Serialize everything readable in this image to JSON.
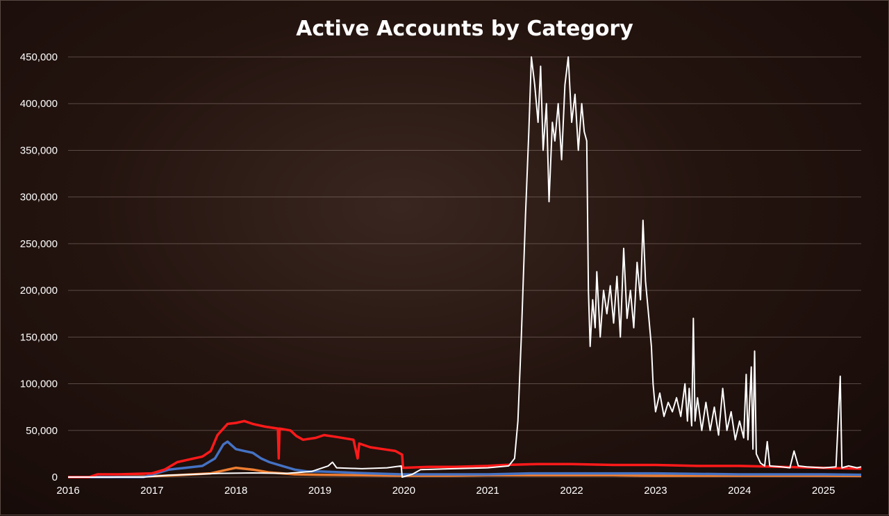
{
  "chart_data": {
    "type": "line",
    "title": "Active Accounts by Category",
    "xlabel": "",
    "ylabel": "",
    "xlim": [
      2016.0,
      2025.45
    ],
    "ylim": [
      0,
      450000
    ],
    "grid": true,
    "legend": "none",
    "x_ticks": [
      "2016",
      "2017",
      "2018",
      "2019",
      "2020",
      "2021",
      "2022",
      "2023",
      "2024",
      "2025"
    ],
    "y_ticks": [
      "0",
      "50,000",
      "100,000",
      "150,000",
      "200,000",
      "250,000",
      "300,000",
      "350,000",
      "400,000",
      "450,000"
    ],
    "colors": {
      "white": "#ffffff",
      "red": "#ff1a1a",
      "blue": "#4472c4",
      "orange": "#ed7d31"
    },
    "series": [
      {
        "color": "#ffffff",
        "points": [
          [
            2016.0,
            0
          ],
          [
            2016.9,
            0
          ],
          [
            2017.2,
            2000
          ],
          [
            2017.5,
            3000
          ],
          [
            2017.8,
            4000
          ],
          [
            2018.2,
            4500
          ],
          [
            2018.6,
            4000
          ],
          [
            2018.9,
            6000
          ],
          [
            2019.0,
            9000
          ],
          [
            2019.1,
            12000
          ],
          [
            2019.15,
            16000
          ],
          [
            2019.2,
            10000
          ],
          [
            2019.5,
            9000
          ],
          [
            2019.8,
            10000
          ],
          [
            2019.97,
            12000
          ],
          [
            2019.98,
            0
          ],
          [
            2020.1,
            3000
          ],
          [
            2020.2,
            8000
          ],
          [
            2020.6,
            9000
          ],
          [
            2021.0,
            10000
          ],
          [
            2021.25,
            12000
          ],
          [
            2021.32,
            20000
          ],
          [
            2021.36,
            60000
          ],
          [
            2021.4,
            150000
          ],
          [
            2021.45,
            280000
          ],
          [
            2021.49,
            370000
          ],
          [
            2021.52,
            450000
          ],
          [
            2021.56,
            420000
          ],
          [
            2021.6,
            380000
          ],
          [
            2021.63,
            440000
          ],
          [
            2021.66,
            350000
          ],
          [
            2021.7,
            400000
          ],
          [
            2021.73,
            295000
          ],
          [
            2021.77,
            380000
          ],
          [
            2021.8,
            360000
          ],
          [
            2021.84,
            400000
          ],
          [
            2021.88,
            340000
          ],
          [
            2021.92,
            420000
          ],
          [
            2021.96,
            450000
          ],
          [
            2022.0,
            380000
          ],
          [
            2022.04,
            410000
          ],
          [
            2022.08,
            350000
          ],
          [
            2022.12,
            400000
          ],
          [
            2022.15,
            370000
          ],
          [
            2022.18,
            360000
          ],
          [
            2022.2,
            200000
          ],
          [
            2022.22,
            140000
          ],
          [
            2022.25,
            190000
          ],
          [
            2022.28,
            160000
          ],
          [
            2022.3,
            220000
          ],
          [
            2022.34,
            150000
          ],
          [
            2022.38,
            200000
          ],
          [
            2022.42,
            175000
          ],
          [
            2022.46,
            205000
          ],
          [
            2022.5,
            165000
          ],
          [
            2022.54,
            215000
          ],
          [
            2022.58,
            150000
          ],
          [
            2022.62,
            245000
          ],
          [
            2022.66,
            170000
          ],
          [
            2022.7,
            200000
          ],
          [
            2022.74,
            160000
          ],
          [
            2022.78,
            230000
          ],
          [
            2022.82,
            190000
          ],
          [
            2022.85,
            275000
          ],
          [
            2022.88,
            210000
          ],
          [
            2022.92,
            170000
          ],
          [
            2022.95,
            140000
          ],
          [
            2022.97,
            100000
          ],
          [
            2023.0,
            70000
          ],
          [
            2023.05,
            90000
          ],
          [
            2023.1,
            65000
          ],
          [
            2023.15,
            80000
          ],
          [
            2023.2,
            70000
          ],
          [
            2023.25,
            85000
          ],
          [
            2023.3,
            65000
          ],
          [
            2023.35,
            100000
          ],
          [
            2023.38,
            60000
          ],
          [
            2023.4,
            95000
          ],
          [
            2023.43,
            55000
          ],
          [
            2023.45,
            170000
          ],
          [
            2023.47,
            60000
          ],
          [
            2023.5,
            85000
          ],
          [
            2023.55,
            50000
          ],
          [
            2023.6,
            80000
          ],
          [
            2023.65,
            50000
          ],
          [
            2023.7,
            75000
          ],
          [
            2023.75,
            45000
          ],
          [
            2023.8,
            95000
          ],
          [
            2023.85,
            50000
          ],
          [
            2023.9,
            70000
          ],
          [
            2023.95,
            40000
          ],
          [
            2024.0,
            60000
          ],
          [
            2024.05,
            42000
          ],
          [
            2024.08,
            110000
          ],
          [
            2024.1,
            40000
          ],
          [
            2024.14,
            118000
          ],
          [
            2024.16,
            30000
          ],
          [
            2024.18,
            135000
          ],
          [
            2024.2,
            25000
          ],
          [
            2024.25,
            15000
          ],
          [
            2024.3,
            12000
          ],
          [
            2024.33,
            38000
          ],
          [
            2024.36,
            12000
          ],
          [
            2024.5,
            11000
          ],
          [
            2024.6,
            10000
          ],
          [
            2024.65,
            28000
          ],
          [
            2024.7,
            12000
          ],
          [
            2024.8,
            11000
          ],
          [
            2025.0,
            10000
          ],
          [
            2025.15,
            11000
          ],
          [
            2025.2,
            108000
          ],
          [
            2025.22,
            10000
          ],
          [
            2025.3,
            12000
          ],
          [
            2025.4,
            10000
          ],
          [
            2025.45,
            11000
          ]
        ]
      },
      {
        "color": "#ff1a1a",
        "points": [
          [
            2016.0,
            0
          ],
          [
            2016.25,
            0
          ],
          [
            2016.35,
            3000
          ],
          [
            2016.6,
            3000
          ],
          [
            2017.0,
            4000
          ],
          [
            2017.15,
            8000
          ],
          [
            2017.3,
            16000
          ],
          [
            2017.5,
            20000
          ],
          [
            2017.6,
            22000
          ],
          [
            2017.7,
            28000
          ],
          [
            2017.78,
            45000
          ],
          [
            2017.9,
            57000
          ],
          [
            2018.0,
            58000
          ],
          [
            2018.1,
            60000
          ],
          [
            2018.2,
            57000
          ],
          [
            2018.35,
            54000
          ],
          [
            2018.5,
            52000
          ],
          [
            2018.51,
            20000
          ],
          [
            2018.52,
            52000
          ],
          [
            2018.65,
            50000
          ],
          [
            2018.72,
            44000
          ],
          [
            2018.8,
            40000
          ],
          [
            2018.95,
            42000
          ],
          [
            2019.05,
            45000
          ],
          [
            2019.2,
            43000
          ],
          [
            2019.4,
            40000
          ],
          [
            2019.45,
            20000
          ],
          [
            2019.47,
            36000
          ],
          [
            2019.6,
            32000
          ],
          [
            2019.75,
            30000
          ],
          [
            2019.9,
            28000
          ],
          [
            2019.98,
            24000
          ],
          [
            2019.99,
            10000
          ],
          [
            2020.3,
            11000
          ],
          [
            2020.6,
            11000
          ],
          [
            2021.0,
            12000
          ],
          [
            2021.2,
            13000
          ],
          [
            2021.6,
            14000
          ],
          [
            2022.0,
            14000
          ],
          [
            2022.5,
            13000
          ],
          [
            2023.0,
            13000
          ],
          [
            2023.5,
            12000
          ],
          [
            2024.0,
            12000
          ],
          [
            2024.5,
            11000
          ],
          [
            2025.0,
            10000
          ],
          [
            2025.45,
            9000
          ]
        ]
      },
      {
        "color": "#4472c4",
        "points": [
          [
            2016.0,
            0
          ],
          [
            2016.9,
            0
          ],
          [
            2017.2,
            8000
          ],
          [
            2017.4,
            10000
          ],
          [
            2017.6,
            12000
          ],
          [
            2017.75,
            20000
          ],
          [
            2017.85,
            35000
          ],
          [
            2017.9,
            38000
          ],
          [
            2018.0,
            30000
          ],
          [
            2018.1,
            28000
          ],
          [
            2018.2,
            26000
          ],
          [
            2018.3,
            20000
          ],
          [
            2018.4,
            16000
          ],
          [
            2018.55,
            12000
          ],
          [
            2018.7,
            8000
          ],
          [
            2018.85,
            6000
          ],
          [
            2019.0,
            6000
          ],
          [
            2019.3,
            5000
          ],
          [
            2019.6,
            4000
          ],
          [
            2019.98,
            3000
          ],
          [
            2020.5,
            3000
          ],
          [
            2021.0,
            3000
          ],
          [
            2021.5,
            4000
          ],
          [
            2022.0,
            4000
          ],
          [
            2023.0,
            4000
          ],
          [
            2024.0,
            3000
          ],
          [
            2025.0,
            3000
          ],
          [
            2025.45,
            2500
          ]
        ]
      },
      {
        "color": "#ed7d31",
        "points": [
          [
            2016.0,
            0
          ],
          [
            2016.5,
            0
          ],
          [
            2017.0,
            1000
          ],
          [
            2017.3,
            2000
          ],
          [
            2017.7,
            4000
          ],
          [
            2017.9,
            8000
          ],
          [
            2018.0,
            10000
          ],
          [
            2018.2,
            8000
          ],
          [
            2018.4,
            5000
          ],
          [
            2018.7,
            3000
          ],
          [
            2019.0,
            2500
          ],
          [
            2019.5,
            2000
          ],
          [
            2020.0,
            1500
          ],
          [
            2020.5,
            1500
          ],
          [
            2021.0,
            2000
          ],
          [
            2021.5,
            2000
          ],
          [
            2022.0,
            2000
          ],
          [
            2022.5,
            2000
          ],
          [
            2023.0,
            1500
          ],
          [
            2024.0,
            1500
          ],
          [
            2025.0,
            1500
          ],
          [
            2025.45,
            1200
          ]
        ]
      }
    ]
  }
}
